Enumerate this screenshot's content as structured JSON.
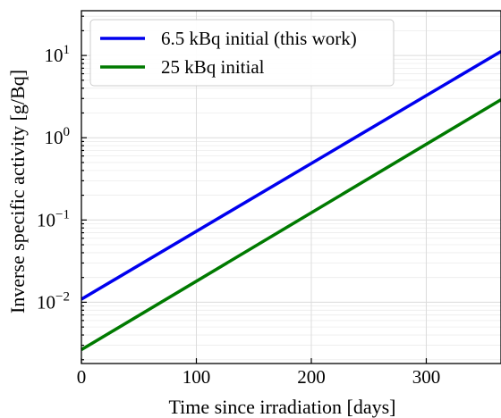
{
  "chart_data": {
    "type": "line",
    "xlabel": "Time since irradiation [days]",
    "ylabel": "Inverse specific activity [g/Bq]",
    "y_scale": "log",
    "xlim": [
      0,
      365
    ],
    "ylim": [
      0.0018,
      35
    ],
    "xticks": [
      0,
      100,
      200,
      300
    ],
    "xtick_labels": [
      "0",
      "100",
      "200",
      "300"
    ],
    "yticks": [
      0.01,
      0.1,
      1,
      10
    ],
    "ytick_labels": [
      {
        "base": "10",
        "exp": "−2"
      },
      {
        "base": "10",
        "exp": "−1"
      },
      {
        "base": "10",
        "exp": "0"
      },
      {
        "base": "10",
        "exp": "1"
      }
    ],
    "grid": true,
    "legend_position": "top-left",
    "series": [
      {
        "name": "6.5 kBq initial (this work)",
        "color": "#0000ee",
        "x": [
          0,
          365
        ],
        "y": [
          0.0109,
          11.2
        ]
      },
      {
        "name": "25 kBq initial",
        "color": "#007a00",
        "x": [
          0,
          365
        ],
        "y": [
          0.00265,
          2.9
        ]
      }
    ]
  }
}
